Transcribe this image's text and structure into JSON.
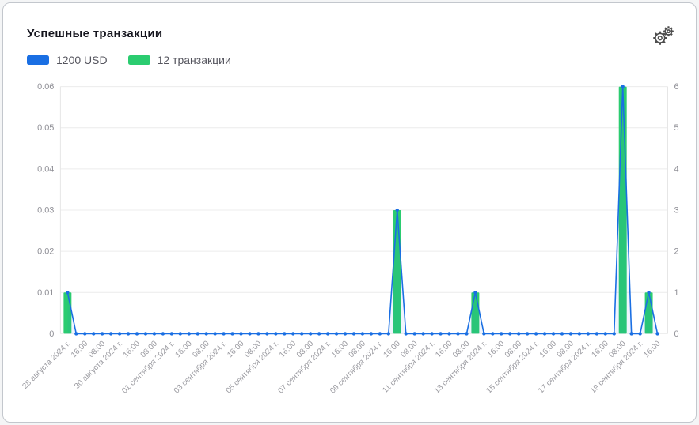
{
  "header": {
    "title": "Успешные транзакции",
    "settings_icon": "double-gear-icon"
  },
  "legend": [
    {
      "label": "1200 USD",
      "color": "#1a6fe3"
    },
    {
      "label": "12 транзакции",
      "color": "#2bcc70"
    }
  ],
  "colors": {
    "line_blue": "#1a6fe3",
    "bar_green": "#2bcc70",
    "gridline": "#ececec",
    "axis_line": "#e6e6e6",
    "area_fill": "rgba(26,111,227,0.07)"
  },
  "chart_data": {
    "type": "line+bar",
    "title": "Успешные транзакции",
    "grid": "horizontal",
    "legend_position": "top-left",
    "x_points_per_tick": 2,
    "x_point_interval": "8 hours",
    "x_tick_labels": [
      "28 августа 2024 г.",
      "16:00",
      "08:00",
      "30 августа 2024 г.",
      "16:00",
      "08:00",
      "01 сентября 2024 г.",
      "16:00",
      "08:00",
      "03 сентября 2024 г.",
      "16:00",
      "08:00",
      "05 сентября 2024 г.",
      "16:00",
      "08:00",
      "07 сентября 2024 г.",
      "16:00",
      "08:00",
      "09 сентября 2024 г.",
      "16:00",
      "08:00",
      "11 сентября 2024 г.",
      "16:00",
      "08:00",
      "13 сентября 2024 г.",
      "16:00",
      "08:00",
      "15 сентября 2024 г.",
      "16:00",
      "08:00",
      "17 сентября 2024 г.",
      "16:00",
      "08:00",
      "19 сентября 2024 г.",
      "16:00"
    ],
    "left_axis": {
      "min": 0,
      "max": 0.06,
      "ticks": [
        "0",
        "0.01",
        "0.02",
        "0.03",
        "0.04",
        "0.05",
        "0.06"
      ]
    },
    "right_axis": {
      "min": 0,
      "max": 6,
      "ticks": [
        "0",
        "1",
        "2",
        "3",
        "4",
        "5",
        "6"
      ]
    },
    "series": [
      {
        "name": "1200 USD",
        "type": "line",
        "axis": "left",
        "color": "#1a6fe3",
        "values": [
          0.01,
          0,
          0,
          0,
          0,
          0,
          0,
          0,
          0,
          0,
          0,
          0,
          0,
          0,
          0,
          0,
          0,
          0,
          0,
          0,
          0,
          0,
          0,
          0,
          0,
          0,
          0,
          0,
          0,
          0,
          0,
          0,
          0,
          0,
          0,
          0,
          0,
          0,
          0.03,
          0,
          0,
          0,
          0,
          0,
          0,
          0,
          0,
          0.01,
          0,
          0,
          0,
          0,
          0,
          0,
          0,
          0,
          0,
          0,
          0,
          0,
          0,
          0,
          0,
          0,
          0.06,
          0,
          0,
          0.01,
          0
        ]
      },
      {
        "name": "12 транзакции",
        "type": "bar",
        "axis": "right",
        "color": "#2bcc70",
        "values": [
          1,
          0,
          0,
          0,
          0,
          0,
          0,
          0,
          0,
          0,
          0,
          0,
          0,
          0,
          0,
          0,
          0,
          0,
          0,
          0,
          0,
          0,
          0,
          0,
          0,
          0,
          0,
          0,
          0,
          0,
          0,
          0,
          0,
          0,
          0,
          0,
          0,
          0,
          3,
          0,
          0,
          0,
          0,
          0,
          0,
          0,
          0,
          1,
          0,
          0,
          0,
          0,
          0,
          0,
          0,
          0,
          0,
          0,
          0,
          0,
          0,
          0,
          0,
          0,
          6,
          0,
          0,
          1,
          0
        ]
      }
    ],
    "peaks_annotation": [
      {
        "x": "28 августа 2024 г. 00:00",
        "usd": 0.01,
        "transactions": 1
      },
      {
        "x": "09 сентября 2024 г. 16:00",
        "usd": 0.03,
        "transactions": 3
      },
      {
        "x": "12 сентября 2024 г. 16:00",
        "usd": 0.01,
        "transactions": 1
      },
      {
        "x": "18 сентября 2024 г. 08:00",
        "usd": 0.06,
        "transactions": 6
      },
      {
        "x": "19 сентября 2024 г. 08:00",
        "usd": 0.01,
        "transactions": 1
      }
    ]
  }
}
